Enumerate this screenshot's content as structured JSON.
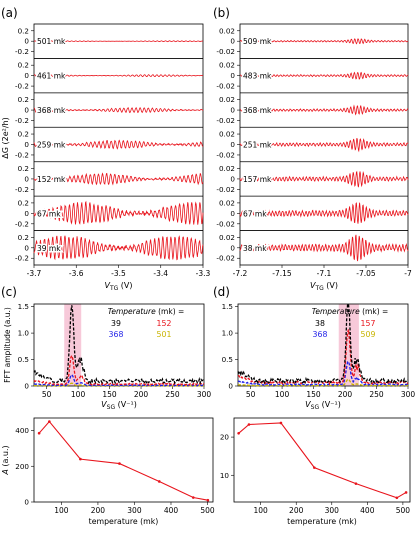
{
  "panel_labels": {
    "a": "(a)",
    "b": "(b)",
    "c": "(c)",
    "d": "(d)"
  },
  "common_ylabel": "ΔG (2e²/h)",
  "top_tick_labels": [
    "0.2",
    "0",
    "-0.2"
  ],
  "colors": {
    "trace": "#e8141c",
    "black": "#000000",
    "red": "#e8141c",
    "blue": "#1f1fe8",
    "yellow": "#c8b400",
    "highlight": "#f5bcd0",
    "line": "#e8141c"
  },
  "chart_data": [
    {
      "id": "a",
      "type": "line",
      "xlabel_main": "V",
      "xlabel_sub": "TG",
      "xlabel_unit": " (V)",
      "xlim": [
        -3.7,
        -3.3
      ],
      "xticks": [
        -3.7,
        -3.6,
        -3.5,
        -3.4,
        -3.3
      ],
      "xtick_labels": [
        "-3.7",
        "-3.6",
        "-3.5",
        "-3.4",
        "-3.3"
      ],
      "ylim": [
        -0.3,
        0.3
      ],
      "series": [
        {
          "name": "501 mk",
          "amplitude": 0.008
        },
        {
          "name": "461 mk",
          "amplitude": 0.018
        },
        {
          "name": "368 mk",
          "amplitude": 0.045
        },
        {
          "name": "259 mk",
          "amplitude": 0.075
        },
        {
          "name": "152 mk",
          "amplitude": 0.1
        },
        {
          "name": "67 mk",
          "amplitude": 0.2
        },
        {
          "name": "39 mk",
          "amplitude": 0.22
        }
      ]
    },
    {
      "id": "b",
      "type": "line",
      "xlabel_main": "V",
      "xlabel_sub": "TG",
      "xlabel_unit": " (V)",
      "xlim": [
        -7.2,
        -7.0
      ],
      "xticks": [
        -7.2,
        -7.15,
        -7.1,
        -7.05,
        -7.0
      ],
      "xtick_labels": [
        "-7.2",
        "-7.15",
        "-7.1",
        "-7.05",
        "-7"
      ],
      "ylim": [
        -0.03,
        0.03
      ],
      "ytick_labels": [
        "0.02",
        "0",
        "-0.02"
      ],
      "series": [
        {
          "name": "509 mk",
          "amplitude": 0.003
        },
        {
          "name": "483 mk",
          "amplitude": 0.004
        },
        {
          "name": "368 mk",
          "amplitude": 0.005
        },
        {
          "name": "251 mk",
          "amplitude": 0.007
        },
        {
          "name": "157 mk",
          "amplitude": 0.009
        },
        {
          "name": "67 mk",
          "amplitude": 0.012
        },
        {
          "name": "38 mk",
          "amplitude": 0.015
        }
      ]
    },
    {
      "id": "c",
      "type": "line",
      "ylabel": "FFT amplitude (a.u.)",
      "xlabel_main": "V",
      "xlabel_sub": "SG",
      "xlabel_unit": " (V⁻¹)",
      "xlim": [
        30,
        300
      ],
      "xticks": [
        50,
        100,
        150,
        200,
        250,
        300
      ],
      "xtick_labels": [
        "50",
        "100",
        "150",
        "200",
        "250",
        "300"
      ],
      "ylim": [
        0,
        1.55
      ],
      "yticks": [
        0,
        0.5,
        1.0,
        1.5
      ],
      "ytick_labels": [
        "0",
        "0.5",
        "1.0",
        "1.5"
      ],
      "highlight": [
        78,
        105
      ],
      "peak_x": 90,
      "legend_title": "Temperature (mk) =",
      "series": [
        {
          "name": "39",
          "color": "black",
          "peak": 1.45
        },
        {
          "name": "152",
          "color": "red",
          "peak": 0.55
        },
        {
          "name": "368",
          "color": "blue",
          "peak": 0.2
        },
        {
          "name": "501",
          "color": "yellow",
          "peak": 0.05
        }
      ]
    },
    {
      "id": "d",
      "type": "line",
      "xlabel_main": "V",
      "xlabel_sub": "SG",
      "xlabel_unit": " (V⁻¹)",
      "xlim": [
        30,
        300
      ],
      "xticks": [
        50,
        100,
        150,
        200,
        250,
        300
      ],
      "xtick_labels": [
        "50",
        "100",
        "150",
        "200",
        "250",
        "300"
      ],
      "ylim": [
        0,
        1.55
      ],
      "yticks": [
        0,
        0.5,
        1.0,
        1.5
      ],
      "ytick_labels": [
        "0",
        "0.5",
        "1.0",
        "1.5"
      ],
      "highlight": [
        190,
        222
      ],
      "peak_x": 205,
      "legend_title": "Temperature (mk) =",
      "series": [
        {
          "name": "38",
          "color": "black",
          "peak": 1.5
        },
        {
          "name": "157",
          "color": "red",
          "peak": 1.0
        },
        {
          "name": "368",
          "color": "blue",
          "peak": 0.45
        },
        {
          "name": "509",
          "color": "yellow",
          "peak": 0.12
        }
      ]
    },
    {
      "id": "e",
      "type": "line",
      "ylabel": "A (a.u.)",
      "xlabel": "temperature (mk)",
      "xlim": [
        25,
        515
      ],
      "ylim": [
        0,
        470
      ],
      "yticks": [
        0,
        200,
        400
      ],
      "ytick_labels": [
        "0",
        "200",
        "400"
      ],
      "xticks": [
        100,
        200,
        300,
        400,
        500
      ],
      "xtick_labels": [
        "100",
        "200",
        "300",
        "400",
        "500"
      ],
      "x": [
        39,
        67,
        152,
        259,
        368,
        461,
        501
      ],
      "y": [
        385,
        450,
        240,
        215,
        115,
        25,
        10
      ]
    },
    {
      "id": "f",
      "type": "line",
      "xlabel": "temperature (mk)",
      "xlim": [
        25,
        520
      ],
      "ylim": [
        3,
        25
      ],
      "yticks": [
        10,
        20
      ],
      "ytick_labels": [
        "10",
        "20"
      ],
      "xticks": [
        100,
        200,
        300,
        400,
        500
      ],
      "xtick_labels": [
        "100",
        "200",
        "300",
        "400",
        "500"
      ],
      "x": [
        38,
        67,
        157,
        251,
        368,
        483,
        509
      ],
      "y": [
        21,
        23.3,
        23.7,
        12,
        7.8,
        4.1,
        5.5
      ]
    }
  ]
}
